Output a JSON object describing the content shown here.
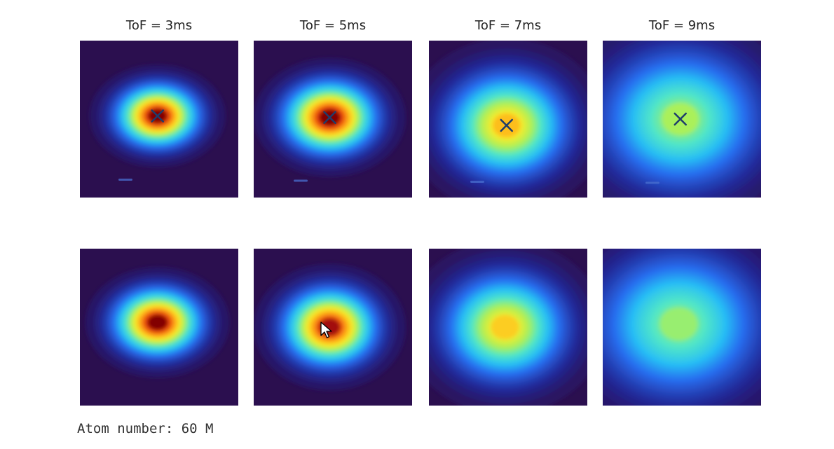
{
  "chart_data": {
    "type": "heatmap",
    "colormap": "jet",
    "panels": [
      {
        "title": "ToF = 3ms",
        "measured": {
          "peak": 1.0,
          "center": [
            0.49,
            0.48
          ],
          "sigma": [
            0.17,
            0.13
          ],
          "marker": "x"
        },
        "fit": {
          "peak": 1.0,
          "center": [
            0.49,
            0.47
          ],
          "sigma": [
            0.18,
            0.14
          ]
        }
      },
      {
        "title": "ToF = 5ms",
        "measured": {
          "peak": 1.0,
          "center": [
            0.48,
            0.49
          ],
          "sigma": [
            0.19,
            0.15
          ],
          "marker": "x"
        },
        "fit": {
          "peak": 0.97,
          "center": [
            0.48,
            0.5
          ],
          "sigma": [
            0.19,
            0.16
          ]
        }
      },
      {
        "title": "ToF = 7ms",
        "measured": {
          "peak": 0.78,
          "center": [
            0.49,
            0.54
          ],
          "sigma": [
            0.25,
            0.22
          ],
          "marker": "x"
        },
        "fit": {
          "peak": 0.76,
          "center": [
            0.48,
            0.5
          ],
          "sigma": [
            0.25,
            0.22
          ]
        }
      },
      {
        "title": "ToF = 9ms",
        "measured": {
          "peak": 0.62,
          "center": [
            0.49,
            0.5
          ],
          "sigma": [
            0.33,
            0.29
          ],
          "marker": "x"
        },
        "fit": {
          "peak": 0.6,
          "center": [
            0.48,
            0.48
          ],
          "sigma": [
            0.34,
            0.3
          ]
        }
      }
    ]
  },
  "caption": "Atom number: 60 M"
}
